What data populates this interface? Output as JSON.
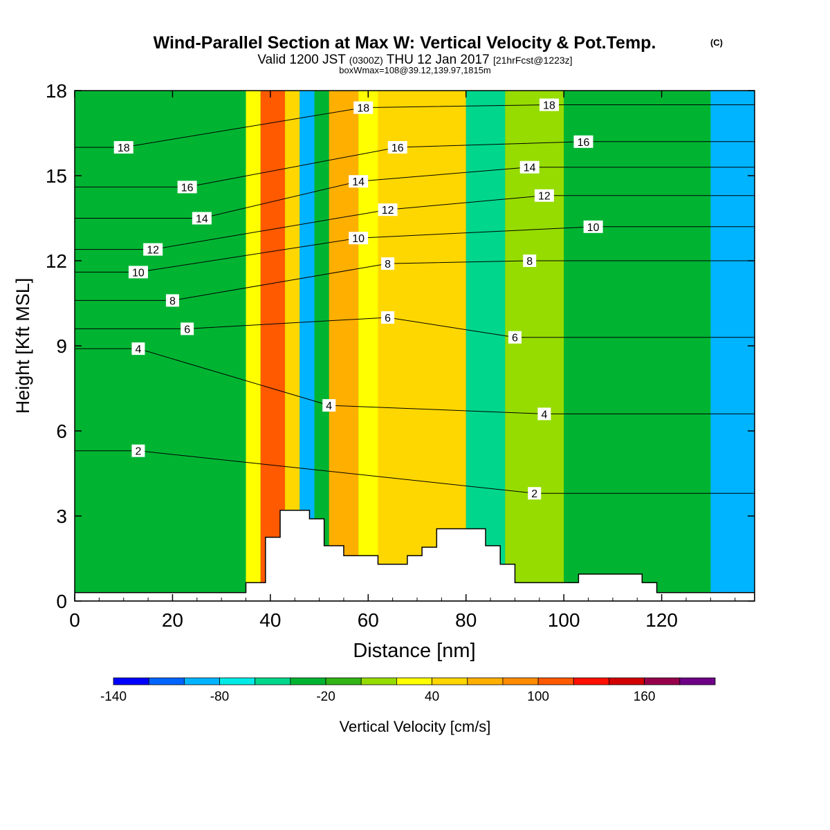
{
  "title": {
    "main": "Wind-Parallel Section at Max W: Vertical Velocity & Pot.Temp.",
    "copyright": "(C)",
    "line2_prefix": "Valid 1200 JST",
    "line2_utc": "(0300Z)",
    "line2_date": "THU 12 Jan 2017",
    "line2_fcst": "[21hrFcst@1223z]",
    "line3": "boxWmax=108@39.12,139.97,1815m"
  },
  "colorbar": {
    "label": "Vertical Velocity [cm/s]",
    "tick_labels": [
      "-140",
      "-80",
      "-20",
      "40",
      "100",
      "160"
    ],
    "tick_values": [
      -140,
      -80,
      -20,
      40,
      100,
      160
    ],
    "min": -140,
    "max": 200,
    "step": 20,
    "colors": [
      "#0000ff",
      "#0064ff",
      "#00b4ff",
      "#00ebe6",
      "#00d78c",
      "#00b432",
      "#32b414",
      "#96dc00",
      "#ffff00",
      "#ffd700",
      "#ffaf00",
      "#ff8c00",
      "#ff5a00",
      "#ff0f00",
      "#d20000",
      "#96004b",
      "#6e0087"
    ]
  },
  "chart_data": {
    "type": "heatmap",
    "title": "Wind-Parallel Section at Max W: Vertical Velocity & Pot.Temp.",
    "xlabel": "Distance [nm]",
    "ylabel": "Height [Kft MSL]",
    "xlim": [
      0,
      139
    ],
    "ylim": [
      0,
      18
    ],
    "x_ticks": [
      0,
      20,
      40,
      60,
      80,
      100,
      120
    ],
    "y_ticks": [
      0,
      3,
      6,
      9,
      12,
      15,
      18
    ],
    "field": "Vertical Velocity [cm/s]",
    "color_field_bands": [
      {
        "x": [
          0,
          35
        ],
        "value": -30
      },
      {
        "x": [
          35,
          38
        ],
        "value": 30
      },
      {
        "x": [
          38,
          43
        ],
        "value": 110
      },
      {
        "x": [
          43,
          46
        ],
        "value": 50
      },
      {
        "x": [
          46,
          49
        ],
        "value": -90
      },
      {
        "x": [
          49,
          52
        ],
        "value": -40
      },
      {
        "x": [
          52,
          58
        ],
        "value": 70
      },
      {
        "x": [
          58,
          62
        ],
        "value": 20
      },
      {
        "x": [
          62,
          80
        ],
        "value": 45
      },
      {
        "x": [
          80,
          88
        ],
        "value": -60
      },
      {
        "x": [
          88,
          100
        ],
        "value": 10
      },
      {
        "x": [
          100,
          130
        ],
        "value": -30
      },
      {
        "x": [
          130,
          139
        ],
        "value": -100
      }
    ],
    "contour_field": "Potential Temperature [C]",
    "contour_labels": [
      {
        "value": 2,
        "x": 13,
        "y": 5.3
      },
      {
        "value": 4,
        "x": 13,
        "y": 8.9
      },
      {
        "value": 6,
        "x": 23,
        "y": 9.6
      },
      {
        "value": 8,
        "x": 20,
        "y": 10.6
      },
      {
        "value": 10,
        "x": 13,
        "y": 11.6
      },
      {
        "value": 12,
        "x": 16,
        "y": 12.4
      },
      {
        "value": 14,
        "x": 26,
        "y": 13.5
      },
      {
        "value": 16,
        "x": 23,
        "y": 14.6
      },
      {
        "value": 18,
        "x": 10,
        "y": 16.0
      },
      {
        "value": 4,
        "x": 52,
        "y": 6.9
      },
      {
        "value": 10,
        "x": 58,
        "y": 12.8
      },
      {
        "value": 14,
        "x": 58,
        "y": 14.8
      },
      {
        "value": 18,
        "x": 59,
        "y": 17.4
      },
      {
        "value": 8,
        "x": 64,
        "y": 11.9
      },
      {
        "value": 6,
        "x": 64,
        "y": 10.0
      },
      {
        "value": 12,
        "x": 64,
        "y": 13.8
      },
      {
        "value": 16,
        "x": 66,
        "y": 16.0
      },
      {
        "value": 2,
        "x": 94,
        "y": 3.8
      },
      {
        "value": 4,
        "x": 96,
        "y": 6.6
      },
      {
        "value": 6,
        "x": 90,
        "y": 9.3
      },
      {
        "value": 8,
        "x": 93,
        "y": 12.0
      },
      {
        "value": 12,
        "x": 96,
        "y": 14.3
      },
      {
        "value": 14,
        "x": 93,
        "y": 15.3
      },
      {
        "value": 18,
        "x": 97,
        "y": 17.5
      },
      {
        "value": 16,
        "x": 104,
        "y": 16.2
      },
      {
        "value": 10,
        "x": 106,
        "y": 13.2
      }
    ],
    "terrain": [
      [
        0,
        0.3
      ],
      [
        35,
        0.3
      ],
      [
        35,
        0.65
      ],
      [
        39,
        0.65
      ],
      [
        39,
        2.25
      ],
      [
        42,
        2.25
      ],
      [
        42,
        3.2
      ],
      [
        48,
        3.2
      ],
      [
        48,
        2.9
      ],
      [
        51,
        2.9
      ],
      [
        51,
        1.95
      ],
      [
        55,
        1.95
      ],
      [
        55,
        1.6
      ],
      [
        62,
        1.6
      ],
      [
        62,
        1.3
      ],
      [
        68,
        1.3
      ],
      [
        68,
        1.6
      ],
      [
        71,
        1.6
      ],
      [
        71,
        1.9
      ],
      [
        74,
        1.9
      ],
      [
        74,
        2.55
      ],
      [
        84,
        2.55
      ],
      [
        84,
        1.95
      ],
      [
        87,
        1.95
      ],
      [
        87,
        1.3
      ],
      [
        90,
        1.3
      ],
      [
        90,
        0.65
      ],
      [
        103,
        0.65
      ],
      [
        103,
        0.95
      ],
      [
        116,
        0.95
      ],
      [
        116,
        0.65
      ],
      [
        119,
        0.65
      ],
      [
        119,
        0.3
      ],
      [
        139,
        0.3
      ]
    ]
  }
}
